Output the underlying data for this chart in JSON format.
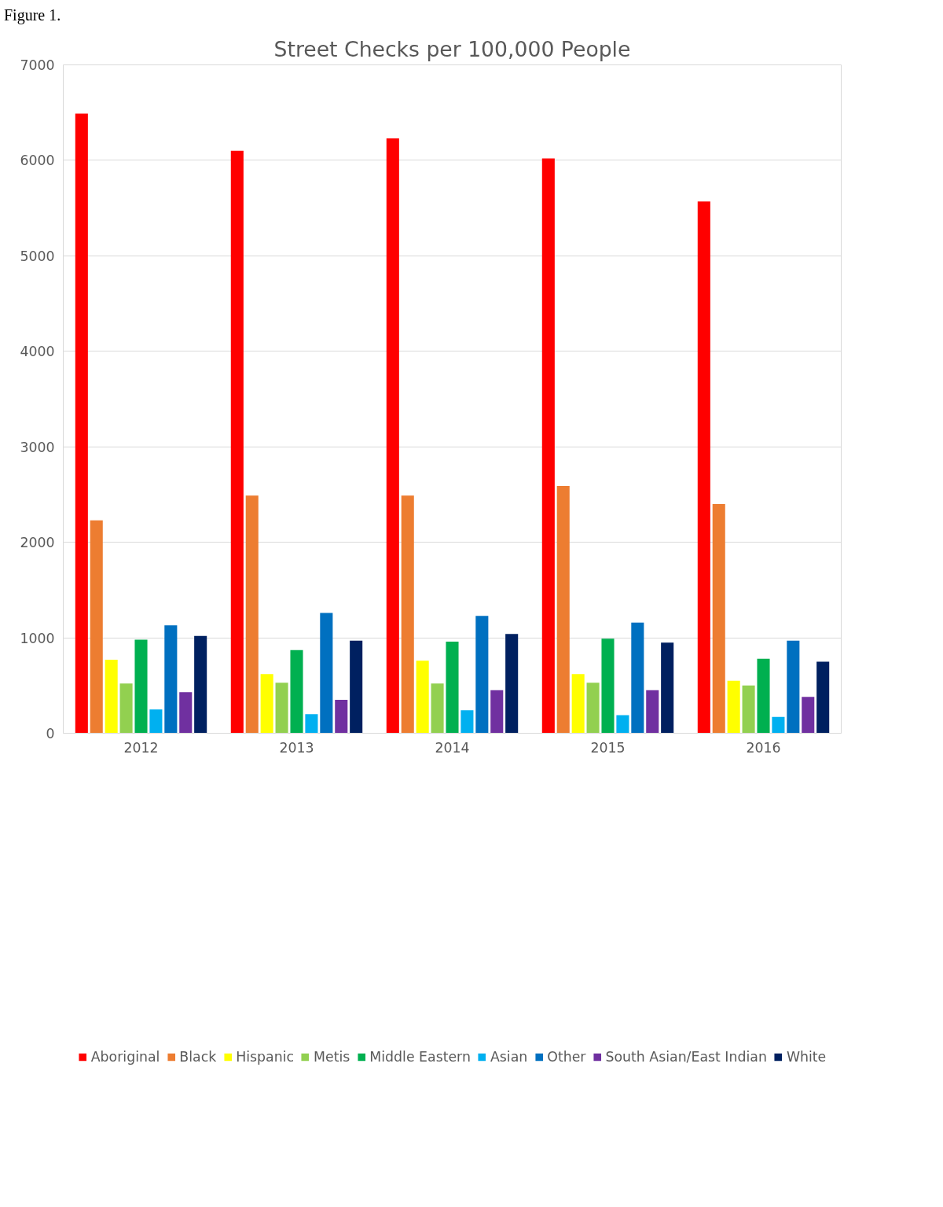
{
  "chart_data": {
    "type": "bar",
    "title": "Street Checks per 100,000 People",
    "annotations": [
      "Figure 1."
    ],
    "categories": [
      "2012",
      "2013",
      "2014",
      "2015",
      "2016"
    ],
    "series": [
      {
        "name": "Aboriginal",
        "color": "#ff0000",
        "values": [
          6490,
          6100,
          6230,
          6020,
          5570
        ]
      },
      {
        "name": "Black",
        "color": "#ed7d31",
        "values": [
          2230,
          2490,
          2490,
          2590,
          2400
        ]
      },
      {
        "name": "Hispanic",
        "color": "#ffff00",
        "values": [
          770,
          620,
          760,
          620,
          550
        ]
      },
      {
        "name": "Metis",
        "color": "#92d050",
        "values": [
          520,
          530,
          520,
          530,
          500
        ]
      },
      {
        "name": "Middle Eastern",
        "color": "#00b050",
        "values": [
          980,
          870,
          960,
          990,
          780
        ]
      },
      {
        "name": "Asian",
        "color": "#00b0f0",
        "values": [
          250,
          200,
          240,
          190,
          170
        ]
      },
      {
        "name": "Other",
        "color": "#0070c0",
        "values": [
          1130,
          1260,
          1230,
          1160,
          970
        ]
      },
      {
        "name": "South Asian/East Indian",
        "color": "#7030a0",
        "values": [
          430,
          350,
          450,
          450,
          380
        ]
      },
      {
        "name": "White",
        "color": "#002060",
        "values": [
          1020,
          970,
          1040,
          950,
          750
        ]
      }
    ],
    "ylim": [
      0,
      7000
    ],
    "yticks": [
      0,
      1000,
      2000,
      3000,
      4000,
      5000,
      6000,
      7000
    ],
    "grid": "y",
    "legend": "bottom"
  }
}
